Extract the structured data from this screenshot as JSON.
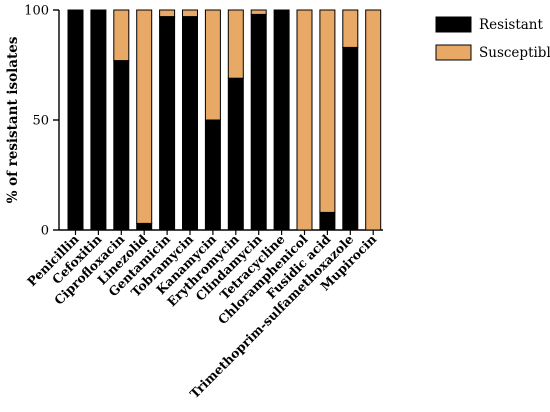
{
  "chart_data": {
    "type": "bar",
    "stacked": true,
    "title": "",
    "xlabel": "",
    "ylabel": "% of resistant isolates",
    "ylim": [
      0,
      100
    ],
    "yticks": [
      0,
      50,
      100
    ],
    "grid": false,
    "legend_position": "top-right",
    "categories": [
      "Penicillin",
      "Cefoxitin",
      "Ciprofloxacin",
      "Linezolid",
      "Gentamicin",
      "Tobramycin",
      "Kanamycin",
      "Erythromycin",
      "Clindamycin",
      "Tetracycline",
      "Chloramphenicol",
      "Fusidic acid",
      "Trimethoprim-sulfamethoxazole",
      "Mupirocin"
    ],
    "series": [
      {
        "name": "Resistant",
        "color": "#000000",
        "values": [
          100,
          100,
          77,
          3,
          97,
          97,
          50,
          69,
          98,
          100,
          0,
          8,
          83,
          0
        ]
      },
      {
        "name": "Susceptible",
        "color": "#E8A866",
        "values": [
          0,
          0,
          23,
          97,
          3,
          3,
          50,
          31,
          2,
          0,
          100,
          92,
          17,
          100
        ]
      }
    ]
  }
}
